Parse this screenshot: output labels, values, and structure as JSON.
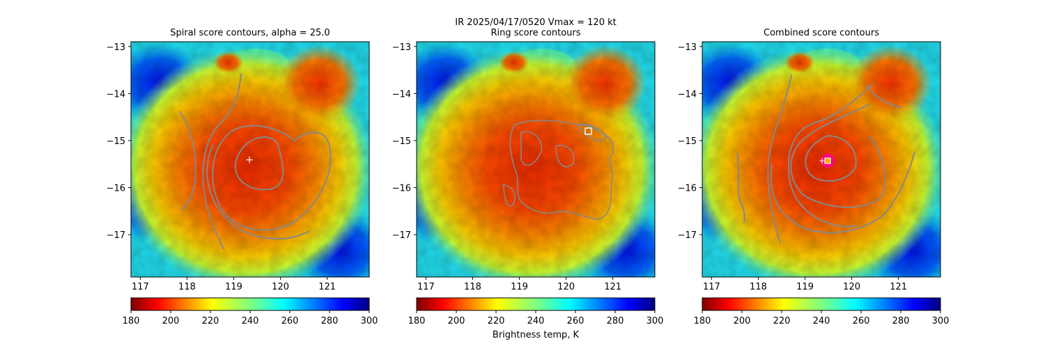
{
  "suptitle": "IR  2025/04/17/0520    Vmax = 120 kt",
  "colorbar": {
    "label": "Brightness temp, K",
    "min": 180,
    "max": 300,
    "ticks": [
      "180",
      "200",
      "220",
      "240",
      "260",
      "280",
      "300"
    ],
    "colormap": "jet_r"
  },
  "chart_data": [
    {
      "type": "heatmap",
      "title": "Spiral score contours, alpha = 25.0",
      "xlim": [
        116.8,
        121.9
      ],
      "ylim": [
        -17.9,
        -12.9
      ],
      "xticks": [
        "117",
        "118",
        "119",
        "120",
        "121"
      ],
      "yticks": [
        "−13",
        "−14",
        "−15",
        "−16",
        "−17"
      ],
      "overlay": "spiral score contours",
      "center_marker": {
        "symbol": "+",
        "lon": 119.35,
        "lat": -15.35
      }
    },
    {
      "type": "heatmap",
      "title": "Ring score contours",
      "xlim": [
        116.8,
        121.9
      ],
      "ylim": [
        -17.9,
        -12.9
      ],
      "xticks": [
        "117",
        "118",
        "119",
        "120",
        "121"
      ],
      "yticks": [
        "−13",
        "−14",
        "−15",
        "−16",
        "−17"
      ],
      "overlay": "ring score contours",
      "ring_marker": {
        "symbol": "square",
        "lon": 120.5,
        "lat": -14.77
      }
    },
    {
      "type": "heatmap",
      "title": "Combined score contours",
      "xlim": [
        116.8,
        121.9
      ],
      "ylim": [
        -17.9,
        -12.9
      ],
      "xticks": [
        "117",
        "118",
        "119",
        "120",
        "121"
      ],
      "yticks": [
        "−13",
        "−14",
        "−15",
        "−16",
        "−17"
      ],
      "overlay": "combined score contours",
      "center_marker": {
        "symbol": "+",
        "lon": 119.35,
        "lat": -15.38
      },
      "ring_marker": {
        "symbol": "square",
        "lon": 119.48,
        "lat": -15.4
      },
      "final_center": {
        "symbol": "circle",
        "lon": 119.48,
        "lat": -15.4
      }
    }
  ]
}
